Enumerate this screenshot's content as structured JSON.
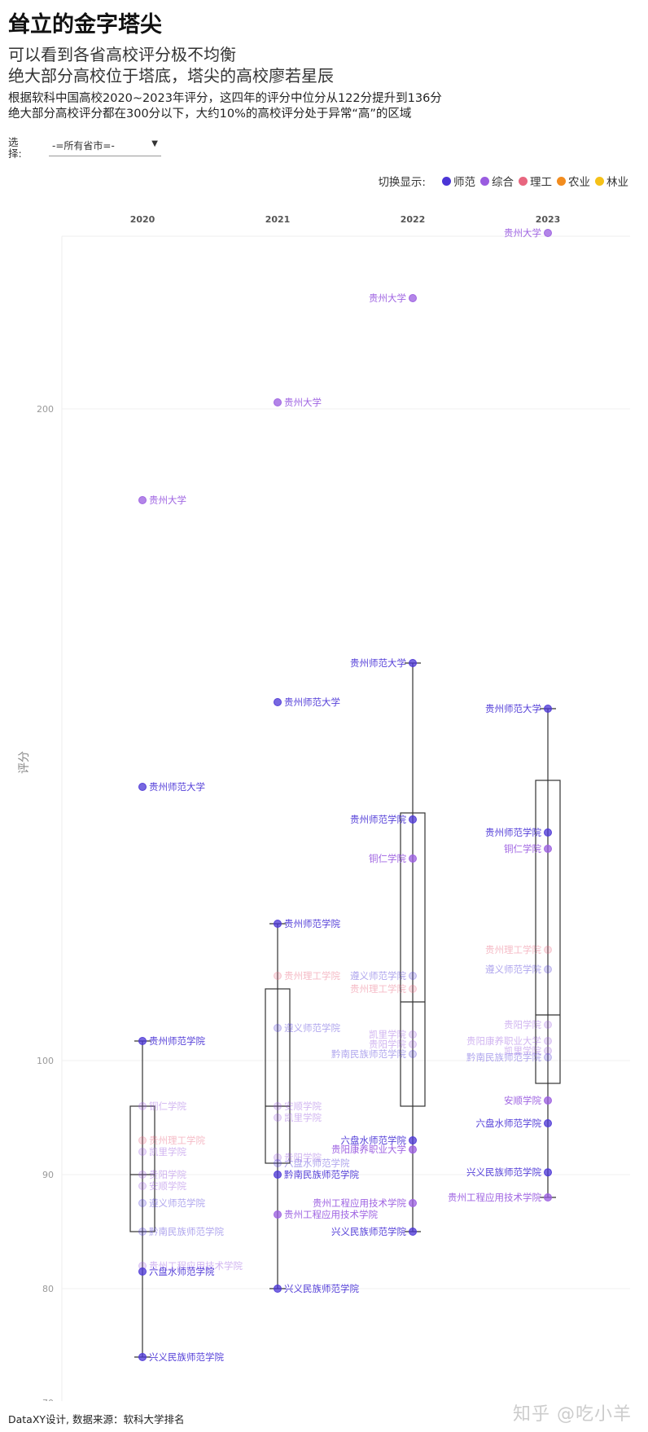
{
  "header": {
    "title": "耸立的金字塔尖",
    "subtitle_1": "可以看到各省高校评分极不均衡",
    "subtitle_2": "绝大部分高校位于塔底，塔尖的高校廖若星辰",
    "desc_1": "根据软科中国高校2020~2023年评分，这四年的评分中位分从122分提升到136分",
    "desc_2": "绝大部分高校评分都在300分以下，大约10%的高校评分处于异常“高”的区域"
  },
  "selector": {
    "label": "选择:",
    "value": "-=所有省市=-",
    "arrow_icon": "triangle-down"
  },
  "legend": {
    "title": "切换显示:",
    "items": [
      {
        "label": "师范",
        "color": "#4b35d6"
      },
      {
        "label": "综合",
        "color": "#9a5ce0"
      },
      {
        "label": "理工",
        "color": "#e8667f"
      },
      {
        "label": "农业",
        "color": "#f28c1e"
      },
      {
        "label": "林业",
        "color": "#f5c118"
      }
    ]
  },
  "footer": {
    "credit": "DataXY设计, 数据来源：软科大学排名",
    "watermark": "知乎 @吃小羊"
  },
  "chart_data": {
    "type": "scatter",
    "ylabel": "评分",
    "y_ticks": [
      70,
      80,
      90,
      100,
      200
    ],
    "y_scale": "piecewise: 70→100 linear, 100→200 linear",
    "grid": true,
    "x_categories": [
      "2020",
      "2021",
      "2022",
      "2023"
    ],
    "colors": {
      "师范": "#4b35d6",
      "综合": "#9a5ce0",
      "理工": "#e8667f",
      "农业": "#f28c1e",
      "林业": "#f5c118",
      "box": "#333333"
    },
    "boxes": [
      {
        "year": "2020",
        "low": 74,
        "q1": 85,
        "median": 90,
        "q3": 96,
        "high": 103
      },
      {
        "year": "2021",
        "low": 80,
        "q1": 91,
        "median": 96,
        "q3": 111,
        "high": 121
      },
      {
        "year": "2022",
        "low": 85,
        "q1": 96,
        "median": 109,
        "q3": 138,
        "high": 161
      },
      {
        "year": "2023",
        "low": 88,
        "q1": 98,
        "median": 107,
        "q3": 143,
        "high": 154
      }
    ],
    "points": [
      {
        "year": "2020",
        "value": 186,
        "label": "贵州大学",
        "cat": "综合",
        "side": "right",
        "strong": true
      },
      {
        "year": "2020",
        "value": 142,
        "label": "贵州师范大学",
        "cat": "师范",
        "side": "right",
        "strong": true
      },
      {
        "year": "2020",
        "value": 103,
        "label": "贵州师范学院",
        "cat": "师范",
        "side": "right",
        "strong": true
      },
      {
        "year": "2020",
        "value": 96,
        "label": "铜仁学院",
        "cat": "综合",
        "side": "right",
        "strong": false
      },
      {
        "year": "2020",
        "value": 93,
        "label": "贵州理工学院",
        "cat": "理工",
        "side": "right",
        "strong": false
      },
      {
        "year": "2020",
        "value": 92,
        "label": "凯里学院",
        "cat": "综合",
        "side": "right",
        "strong": false
      },
      {
        "year": "2020",
        "value": 90,
        "label": "贵阳学院",
        "cat": "综合",
        "side": "right",
        "strong": false
      },
      {
        "year": "2020",
        "value": 89,
        "label": "安顺学院",
        "cat": "综合",
        "side": "right",
        "strong": false
      },
      {
        "year": "2020",
        "value": 87.5,
        "label": "遵义师范学院",
        "cat": "师范",
        "side": "right",
        "strong": false
      },
      {
        "year": "2020",
        "value": 85,
        "label": "黔南民族师范学院",
        "cat": "师范",
        "side": "right",
        "strong": false
      },
      {
        "year": "2020",
        "value": 82,
        "label": "贵州工程应用技术学院",
        "cat": "综合",
        "side": "right",
        "strong": false
      },
      {
        "year": "2020",
        "value": 81.5,
        "label": "六盘水师范学院",
        "cat": "师范",
        "side": "right",
        "strong": true
      },
      {
        "year": "2020",
        "value": 74,
        "label": "兴义民族师范学院",
        "cat": "师范",
        "side": "right",
        "strong": true
      },
      {
        "year": "2021",
        "value": 201,
        "label": "贵州大学",
        "cat": "综合",
        "side": "right",
        "strong": true
      },
      {
        "year": "2021",
        "value": 155,
        "label": "贵州师范大学",
        "cat": "师范",
        "side": "right",
        "strong": true
      },
      {
        "year": "2021",
        "value": 121,
        "label": "贵州师范学院",
        "cat": "师范",
        "side": "right",
        "strong": true
      },
      {
        "year": "2021",
        "value": 113,
        "label": "贵州理工学院",
        "cat": "理工",
        "side": "right",
        "strong": false
      },
      {
        "year": "2021",
        "value": 105,
        "label": "遵义师范学院",
        "cat": "师范",
        "side": "right",
        "strong": false
      },
      {
        "year": "2021",
        "value": 96,
        "label": "安顺学院",
        "cat": "综合",
        "side": "right",
        "strong": false
      },
      {
        "year": "2021",
        "value": 95,
        "label": "凯里学院",
        "cat": "综合",
        "side": "right",
        "strong": false
      },
      {
        "year": "2021",
        "value": 91.5,
        "label": "贵阳学院",
        "cat": "综合",
        "side": "right",
        "strong": false
      },
      {
        "year": "2021",
        "value": 91,
        "label": "六盘水师范学院",
        "cat": "师范",
        "side": "right",
        "strong": false
      },
      {
        "year": "2021",
        "value": 90,
        "label": "黔南民族师范学院",
        "cat": "师范",
        "side": "right",
        "strong": true
      },
      {
        "year": "2021",
        "value": 86.5,
        "label": "贵州工程应用技术学院",
        "cat": "综合",
        "side": "right",
        "strong": true
      },
      {
        "year": "2021",
        "value": 80,
        "label": "兴义民族师范学院",
        "cat": "师范",
        "side": "right",
        "strong": true
      },
      {
        "year": "2022",
        "value": 217,
        "label": "贵州大学",
        "cat": "综合",
        "side": "left",
        "strong": true
      },
      {
        "year": "2022",
        "value": 161,
        "label": "贵州师范大学",
        "cat": "师范",
        "side": "left",
        "strong": true
      },
      {
        "year": "2022",
        "value": 137,
        "label": "贵州师范学院",
        "cat": "师范",
        "side": "left",
        "strong": true
      },
      {
        "year": "2022",
        "value": 131,
        "label": "铜仁学院",
        "cat": "综合",
        "side": "left",
        "strong": true
      },
      {
        "year": "2022",
        "value": 113,
        "label": "遵义师范学院",
        "cat": "师范",
        "side": "left",
        "strong": false
      },
      {
        "year": "2022",
        "value": 111,
        "label": "贵州理工学院",
        "cat": "理工",
        "side": "left",
        "strong": false
      },
      {
        "year": "2022",
        "value": 104,
        "label": "凯里学院",
        "cat": "综合",
        "side": "left",
        "strong": false
      },
      {
        "year": "2022",
        "value": 102.5,
        "label": "贵阳学院",
        "cat": "综合",
        "side": "left",
        "strong": false
      },
      {
        "year": "2022",
        "value": 101,
        "label": "黔南民族师范学院",
        "cat": "师范",
        "side": "left",
        "strong": false
      },
      {
        "year": "2022",
        "value": 93,
        "label": "六盘水师范学院",
        "cat": "师范",
        "side": "left",
        "strong": true
      },
      {
        "year": "2022",
        "value": 92.2,
        "label": "贵阳康养职业大学",
        "cat": "综合",
        "side": "left",
        "strong": true
      },
      {
        "year": "2022",
        "value": 87.5,
        "label": "贵州工程应用技术学院",
        "cat": "综合",
        "side": "left",
        "strong": true
      },
      {
        "year": "2022",
        "value": 85,
        "label": "兴义民族师范学院",
        "cat": "师范",
        "side": "left",
        "strong": true
      },
      {
        "year": "2023",
        "value": 227,
        "label": "贵州大学",
        "cat": "综合",
        "side": "left",
        "strong": true
      },
      {
        "year": "2023",
        "value": 154,
        "label": "贵州师范大学",
        "cat": "师范",
        "side": "left",
        "strong": true
      },
      {
        "year": "2023",
        "value": 135,
        "label": "贵州师范学院",
        "cat": "师范",
        "side": "left",
        "strong": true
      },
      {
        "year": "2023",
        "value": 132.5,
        "label": "铜仁学院",
        "cat": "综合",
        "side": "left",
        "strong": true
      },
      {
        "year": "2023",
        "value": 117,
        "label": "贵州理工学院",
        "cat": "理工",
        "side": "left",
        "strong": false
      },
      {
        "year": "2023",
        "value": 114,
        "label": "遵义师范学院",
        "cat": "师范",
        "side": "left",
        "strong": false
      },
      {
        "year": "2023",
        "value": 105.5,
        "label": "贵阳学院",
        "cat": "综合",
        "side": "left",
        "strong": false
      },
      {
        "year": "2023",
        "value": 103,
        "label": "贵阳康养职业大学",
        "cat": "综合",
        "side": "left",
        "strong": false
      },
      {
        "year": "2023",
        "value": 101.5,
        "label": "凯里学院",
        "cat": "综合",
        "side": "left",
        "strong": false
      },
      {
        "year": "2023",
        "value": 100.5,
        "label": "黔南民族师范学院",
        "cat": "师范",
        "side": "left",
        "strong": false
      },
      {
        "year": "2023",
        "value": 96.5,
        "label": "安顺学院",
        "cat": "综合",
        "side": "left",
        "strong": true
      },
      {
        "year": "2023",
        "value": 94.5,
        "label": "六盘水师范学院",
        "cat": "师范",
        "side": "left",
        "strong": true
      },
      {
        "year": "2023",
        "value": 90.2,
        "label": "兴义民族师范学院",
        "cat": "师范",
        "side": "left",
        "strong": true
      },
      {
        "year": "2023",
        "value": 88,
        "label": "贵州工程应用技术学院",
        "cat": "综合",
        "side": "left",
        "strong": true
      }
    ]
  }
}
